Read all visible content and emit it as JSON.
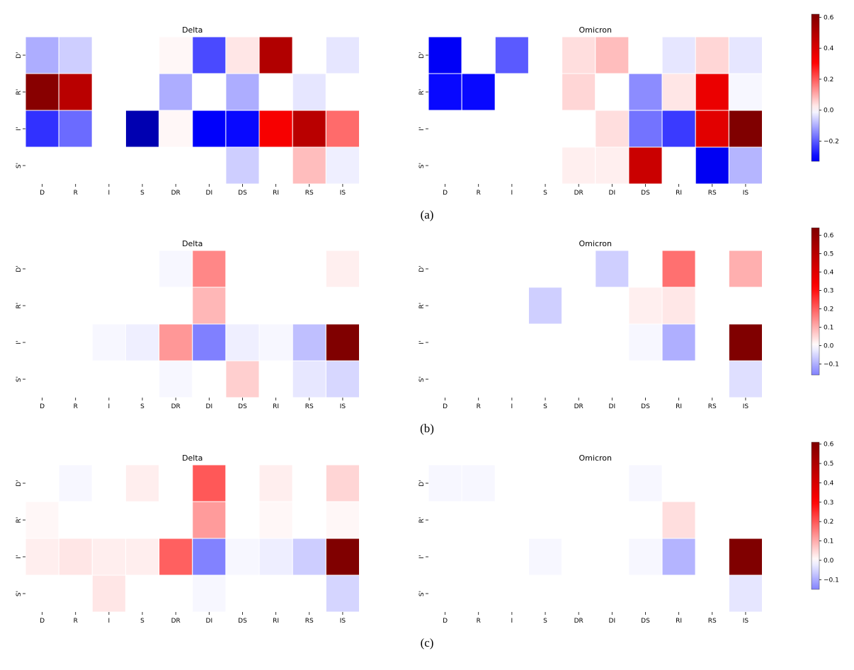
{
  "figure": {
    "panel_labels": [
      "(a)",
      "(b)",
      "(c)"
    ]
  },
  "colors": {
    "negative_end": "#0000ff",
    "navy": "#00007f",
    "neutral": "#ffffff",
    "positive_mid": "#ff0000",
    "dark_red": "#800000",
    "cell_border": "#ffffff"
  },
  "chart_data": [
    {
      "panel": "(a)",
      "title": "Delta",
      "type": "heatmap",
      "x_categories": [
        "D",
        "R",
        "I",
        "S",
        "DR",
        "DI",
        "DS",
        "RI",
        "RS",
        "IS"
      ],
      "y_categories": [
        "D'",
        "R'",
        "I'",
        "S'"
      ],
      "values": [
        [
          -0.1,
          -0.06,
          0.0,
          0.0,
          0.01,
          -0.22,
          0.03,
          0.5,
          0.0,
          -0.03
        ],
        [
          0.6,
          0.48,
          0.0,
          0.0,
          -0.1,
          0.0,
          -0.1,
          0.0,
          -0.03,
          0.0
        ],
        [
          -0.25,
          -0.18,
          0.0,
          -0.5,
          0.01,
          -0.32,
          -0.3,
          0.33,
          0.48,
          0.18
        ],
        [
          0.0,
          0.0,
          0.0,
          0.0,
          0.0,
          0.0,
          -0.06,
          0.0,
          0.08,
          -0.02
        ]
      ],
      "vmin": -0.33,
      "vmax": 0.62,
      "colorbar_ticks": []
    },
    {
      "panel": "(a)",
      "title": "Omicron",
      "type": "heatmap",
      "x_categories": [
        "D",
        "R",
        "I",
        "S",
        "DR",
        "DI",
        "DS",
        "RI",
        "RS",
        "IS"
      ],
      "y_categories": [
        "D'",
        "R'",
        "I'",
        "S'"
      ],
      "values": [
        [
          -0.33,
          0.0,
          -0.2,
          0.0,
          0.04,
          0.08,
          0.0,
          -0.03,
          0.05,
          -0.03
        ],
        [
          -0.3,
          -0.3,
          0.0,
          0.0,
          0.05,
          0.0,
          -0.14,
          0.03,
          0.36,
          -0.01
        ],
        [
          0.0,
          0.0,
          0.0,
          0.0,
          0.0,
          0.04,
          -0.17,
          -0.24,
          0.38,
          0.62
        ],
        [
          0.0,
          0.0,
          0.0,
          0.0,
          0.02,
          0.02,
          0.44,
          0.0,
          -0.34,
          -0.09
        ]
      ],
      "vmin": -0.33,
      "vmax": 0.62,
      "colorbar_ticks": [
        {
          "value": 0.6,
          "label": "0.6"
        },
        {
          "value": 0.4,
          "label": "0.4"
        },
        {
          "value": 0.2,
          "label": "0.2"
        },
        {
          "value": 0.0,
          "label": "0.0"
        },
        {
          "value": -0.2,
          "label": "−0.2"
        }
      ]
    },
    {
      "panel": "(b)",
      "title": "Delta",
      "type": "heatmap",
      "x_categories": [
        "D",
        "R",
        "I",
        "S",
        "DR",
        "DI",
        "DS",
        "RI",
        "RS",
        "IS"
      ],
      "y_categories": [
        "D'",
        "R'",
        "I'",
        "S'"
      ],
      "values": [
        [
          0.0,
          0.0,
          0.0,
          0.0,
          -0.01,
          0.15,
          0.0,
          0.0,
          0.0,
          0.02
        ],
        [
          0.0,
          0.0,
          0.0,
          0.0,
          0.0,
          0.09,
          0.0,
          0.0,
          0.0,
          0.0
        ],
        [
          0.0,
          0.0,
          -0.01,
          -0.02,
          0.13,
          -0.16,
          -0.02,
          -0.01,
          -0.08,
          0.64
        ],
        [
          0.0,
          0.0,
          0.0,
          0.0,
          -0.01,
          0.0,
          0.06,
          0.0,
          -0.03,
          -0.05
        ]
      ],
      "vmin": -0.16,
      "vmax": 0.64,
      "colorbar_ticks": []
    },
    {
      "panel": "(b)",
      "title": "Omicron",
      "type": "heatmap",
      "x_categories": [
        "D",
        "R",
        "I",
        "S",
        "DR",
        "DI",
        "DS",
        "RI",
        "RS",
        "IS"
      ],
      "y_categories": [
        "D'",
        "R'",
        "I'",
        "S'"
      ],
      "values": [
        [
          0.0,
          0.0,
          0.0,
          0.0,
          0.0,
          -0.06,
          0.0,
          0.18,
          0.0,
          0.1
        ],
        [
          0.0,
          0.0,
          0.0,
          -0.06,
          0.0,
          0.0,
          0.02,
          0.03,
          0.0,
          0.0
        ],
        [
          0.0,
          0.0,
          0.0,
          0.0,
          0.0,
          0.0,
          -0.01,
          -0.1,
          0.0,
          0.64
        ],
        [
          0.0,
          0.0,
          0.0,
          0.0,
          0.0,
          0.0,
          0.0,
          0.0,
          0.0,
          -0.04
        ]
      ],
      "vmin": -0.16,
      "vmax": 0.64,
      "colorbar_ticks": [
        {
          "value": 0.6,
          "label": "0.6"
        },
        {
          "value": 0.5,
          "label": "0.5"
        },
        {
          "value": 0.4,
          "label": "0.4"
        },
        {
          "value": 0.3,
          "label": "0.3"
        },
        {
          "value": 0.2,
          "label": "0.2"
        },
        {
          "value": 0.1,
          "label": "0.1"
        },
        {
          "value": 0.0,
          "label": "0.0"
        },
        {
          "value": -0.1,
          "label": "−0.1"
        }
      ]
    },
    {
      "panel": "(c)",
      "title": "Delta",
      "type": "heatmap",
      "x_categories": [
        "D",
        "R",
        "I",
        "S",
        "DR",
        "DI",
        "DS",
        "RI",
        "RS",
        "IS"
      ],
      "y_categories": [
        "D'",
        "R'",
        "I'",
        "S'"
      ],
      "values": [
        [
          0.0,
          -0.01,
          0.0,
          0.02,
          0.0,
          0.2,
          0.0,
          0.02,
          0.0,
          0.05
        ],
        [
          0.01,
          0.0,
          0.0,
          0.0,
          0.0,
          0.12,
          0.0,
          0.01,
          0.0,
          0.01
        ],
        [
          0.02,
          0.03,
          0.02,
          0.02,
          0.19,
          -0.15,
          -0.01,
          -0.02,
          -0.06,
          0.61
        ],
        [
          0.0,
          0.0,
          0.03,
          0.0,
          0.0,
          -0.01,
          0.0,
          0.0,
          0.0,
          -0.05
        ]
      ],
      "vmin": -0.15,
      "vmax": 0.61,
      "colorbar_ticks": []
    },
    {
      "panel": "(c)",
      "title": "Omicron",
      "type": "heatmap",
      "x_categories": [
        "D",
        "R",
        "I",
        "S",
        "DR",
        "DI",
        "DS",
        "RI",
        "RS",
        "IS"
      ],
      "y_categories": [
        "D'",
        "R'",
        "I'",
        "S'"
      ],
      "values": [
        [
          -0.01,
          -0.01,
          0.0,
          0.0,
          0.0,
          0.0,
          -0.01,
          0.0,
          0.0,
          0.0
        ],
        [
          0.0,
          0.0,
          0.0,
          0.0,
          0.0,
          0.0,
          0.0,
          0.04,
          0.0,
          0.0
        ],
        [
          0.0,
          0.0,
          0.0,
          -0.01,
          0.0,
          0.0,
          -0.01,
          -0.09,
          0.0,
          0.61
        ],
        [
          0.0,
          0.0,
          0.0,
          0.0,
          0.0,
          0.0,
          0.0,
          0.0,
          0.0,
          -0.03
        ]
      ],
      "vmin": -0.15,
      "vmax": 0.61,
      "colorbar_ticks": [
        {
          "value": 0.6,
          "label": "0.6"
        },
        {
          "value": 0.5,
          "label": "0.5"
        },
        {
          "value": 0.4,
          "label": "0.4"
        },
        {
          "value": 0.3,
          "label": "0.3"
        },
        {
          "value": 0.2,
          "label": "0.2"
        },
        {
          "value": 0.1,
          "label": "0.1"
        },
        {
          "value": 0.0,
          "label": "0.0"
        },
        {
          "value": -0.1,
          "label": "−0.1"
        }
      ]
    }
  ]
}
